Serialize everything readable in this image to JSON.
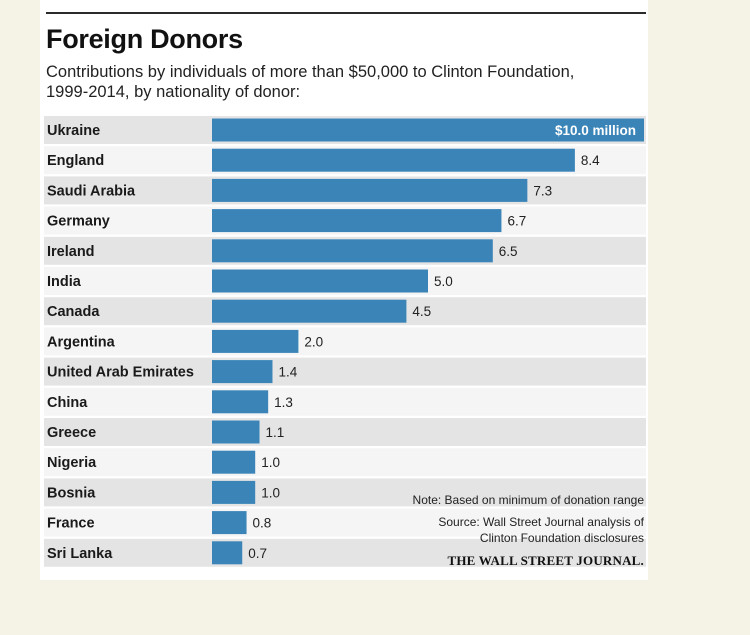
{
  "chart_data": {
    "type": "bar",
    "orientation": "horizontal",
    "title": "Foreign Donors",
    "subtitle_line1": "Contributions by individuals of more than $50,000 to Clinton Foundation,",
    "subtitle_line2": "1999-2014, by nationality of donor:",
    "categories": [
      "Ukraine",
      "England",
      "Saudi Arabia",
      "Germany",
      "Ireland",
      "India",
      "Canada",
      "Argentina",
      "United Arab Emirates",
      "China",
      "Greece",
      "Nigeria",
      "Bosnia",
      "France",
      "Sri Lanka"
    ],
    "values": [
      10.0,
      8.4,
      7.3,
      6.7,
      6.5,
      5.0,
      4.5,
      2.0,
      1.4,
      1.3,
      1.1,
      1.0,
      1.0,
      0.8,
      0.7
    ],
    "value_labels": [
      "$10.0 million",
      "8.4",
      "7.3",
      "6.7",
      "6.5",
      "5.0",
      "4.5",
      "2.0",
      "1.4",
      "1.3",
      "1.1",
      "1.0",
      "1.0",
      "0.8",
      "0.7"
    ],
    "xlim": [
      0,
      10
    ],
    "unit": "million USD",
    "bar_color": "#3a84b8",
    "band_color_a": "#e4e4e4",
    "band_color_b": "#f5f5f5"
  },
  "note": "Note: Based on minimum of donation range",
  "source_line1": "Source: Wall Street Journal analysis of",
  "source_line2": "Clinton Foundation disclosures",
  "publisher": "THE WALL STREET JOURNAL."
}
